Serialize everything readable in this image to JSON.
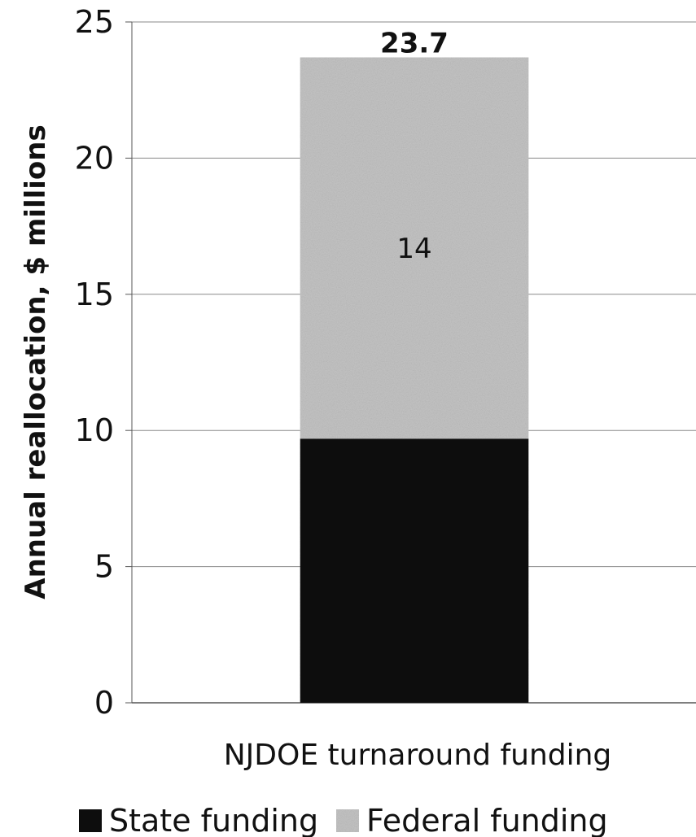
{
  "chart_data": {
    "type": "bar",
    "stacked": true,
    "categories": [
      "NJDOE turnaround funding"
    ],
    "series": [
      {
        "name": "State funding",
        "values": [
          9.7
        ],
        "color": "#111111"
      },
      {
        "name": "Federal funding",
        "values": [
          14
        ],
        "color": "#c4c4c4"
      }
    ],
    "segment_labels": {
      "Federal funding": "14"
    },
    "total_label": "23.7",
    "ylabel": "Annual reallocation, $ millions",
    "xlabel": "",
    "ylim": [
      0,
      25
    ],
    "yticks": [
      0,
      5,
      10,
      15,
      20,
      25
    ],
    "grid": true,
    "legend_position": "bottom"
  }
}
